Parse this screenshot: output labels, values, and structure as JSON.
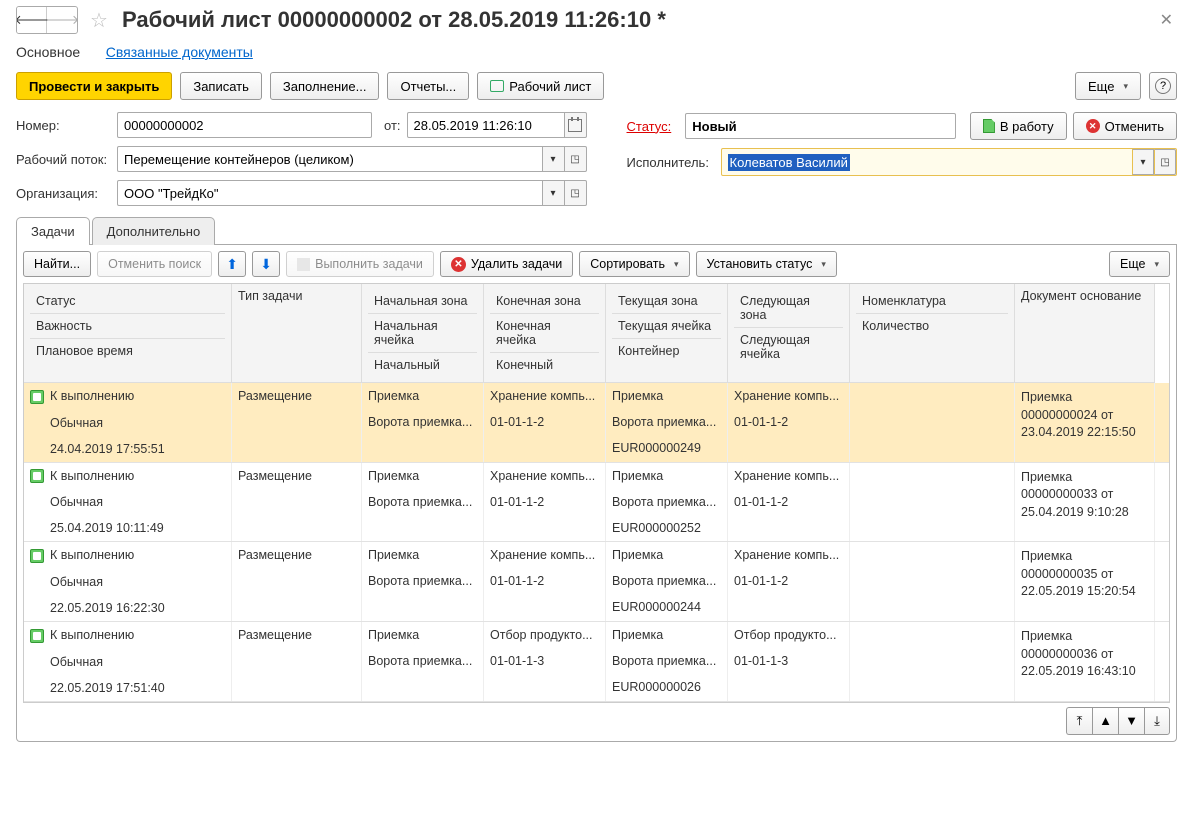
{
  "title": "Рабочий лист 00000000002 от 28.05.2019 11:26:10 *",
  "docTabs": {
    "main": "Основное",
    "linked": "Связанные документы"
  },
  "toolbar": {
    "post_close": "Провести и закрыть",
    "save": "Записать",
    "fill": "Заполнение...",
    "reports": "Отчеты...",
    "print": "Рабочий лист",
    "more": "Еще"
  },
  "form": {
    "number_label": "Номер:",
    "number_value": "00000000002",
    "date_label": "от:",
    "date_value": "28.05.2019 11:26:10",
    "status_label": "Статус:",
    "status_value": "Новый",
    "to_work": "В работу",
    "cancel": "Отменить",
    "flow_label": "Рабочий поток:",
    "flow_value": "Перемещение контейнеров (целиком)",
    "exec_label": "Исполнитель:",
    "exec_value": "Колеватов Василий",
    "org_label": "Организация:",
    "org_value": "ООО \"ТрейдКо\""
  },
  "innerTabs": {
    "tasks": "Задачи",
    "extra": "Дополнительно"
  },
  "taskToolbar": {
    "find": "Найти...",
    "cancel_search": "Отменить поиск",
    "run": "Выполнить задачи",
    "del": "Удалить задачи",
    "sort": "Сортировать",
    "setstatus": "Установить статус",
    "more": "Еще"
  },
  "cols": {
    "status": "Статус",
    "importance": "Важность",
    "plan_time": "Плановое время",
    "task_type": "Тип задачи",
    "start_zone": "Начальная зона",
    "start_cell": "Начальная ячейка",
    "start": "Начальный",
    "end_zone": "Конечная зона",
    "end_cell": "Конечная ячейка",
    "end": "Конечный",
    "cur_zone": "Текущая зона",
    "cur_cell": "Текущая ячейка",
    "container": "Контейнер",
    "next_zone": "Следующая зона",
    "next_cell": "Следующая ячейка",
    "nomen": "Номенклатура",
    "qty": "Количество",
    "docbase": "Документ основание"
  },
  "rows": [
    {
      "sel": true,
      "status": "К выполнению",
      "importance": "Обычная",
      "plan_time": "24.04.2019 17:55:51",
      "task_type": "Размещение",
      "start_zone": "Приемка",
      "start_cell": "Ворота приемка...",
      "end_zone": "Хранение компь...",
      "end_cell": "01-01-1-2",
      "cur_zone": "Приемка",
      "cur_cell": "Ворота приемка...",
      "container": "EUR000000249",
      "next_zone": "Хранение компь...",
      "next_cell": "01-01-1-2",
      "doc": "Приемка 00000000024 от 23.04.2019 22:15:50"
    },
    {
      "status": "К выполнению",
      "importance": "Обычная",
      "plan_time": "25.04.2019 10:11:49",
      "task_type": "Размещение",
      "start_zone": "Приемка",
      "start_cell": "Ворота приемка...",
      "end_zone": "Хранение компь...",
      "end_cell": "01-01-1-2",
      "cur_zone": "Приемка",
      "cur_cell": "Ворота приемка...",
      "container": "EUR000000252",
      "next_zone": "Хранение компь...",
      "next_cell": "01-01-1-2",
      "doc": "Приемка 00000000033 от 25.04.2019 9:10:28"
    },
    {
      "status": "К выполнению",
      "importance": "Обычная",
      "plan_time": "22.05.2019 16:22:30",
      "task_type": "Размещение",
      "start_zone": "Приемка",
      "start_cell": "Ворота приемка...",
      "end_zone": "Хранение компь...",
      "end_cell": "01-01-1-2",
      "cur_zone": "Приемка",
      "cur_cell": "Ворота приемка...",
      "container": "EUR000000244",
      "next_zone": "Хранение компь...",
      "next_cell": "01-01-1-2",
      "doc": "Приемка 00000000035 от 22.05.2019 15:20:54"
    },
    {
      "status": "К выполнению",
      "importance": "Обычная",
      "plan_time": "22.05.2019 17:51:40",
      "task_type": "Размещение",
      "start_zone": "Приемка",
      "start_cell": "Ворота приемка...",
      "end_zone": "Отбор продукто...",
      "end_cell": "01-01-1-3",
      "cur_zone": "Приемка",
      "cur_cell": "Ворота приемка...",
      "container": "EUR000000026",
      "next_zone": "Отбор продукто...",
      "next_cell": "01-01-1-3",
      "doc": "Приемка 00000000036 от 22.05.2019 16:43:10"
    }
  ],
  "colors": {
    "highlight_bg": "#ffecc0",
    "exec_border": "#e8c050",
    "link": "#0066cc"
  }
}
